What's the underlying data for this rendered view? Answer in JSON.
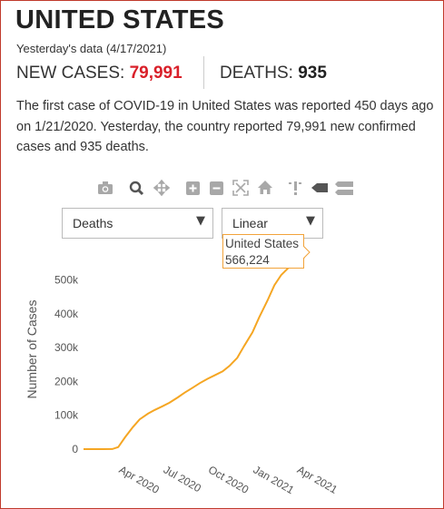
{
  "header": {
    "title": "UNITED STATES",
    "date_line": "Yesterday's data (4/17/2021)",
    "new_cases_label": "NEW CASES: ",
    "new_cases_value": "79,991",
    "deaths_label": "DEATHS: ",
    "deaths_value": "935"
  },
  "description": "The first case of COVID-19 in United States was reported 450 days ago on 1/21/2020. Yesterday, the country reported 79,991 new confirmed cases and 935 deaths.",
  "toolbar": {
    "icons": [
      "camera-icon",
      "zoom-icon",
      "pan-icon",
      "zoom-in-icon",
      "zoom-out-icon",
      "autoscale-icon",
      "home-icon",
      "spike-lines-icon",
      "hover-closest-icon",
      "hover-compare-icon"
    ]
  },
  "controls": {
    "metric_select": "Deaths",
    "scale_select": "Linear"
  },
  "tooltip": {
    "series": "United States",
    "value": "566,224"
  },
  "colors": {
    "accent_red": "#d9202a",
    "line": "#f5a623",
    "frame": "#c0392b"
  },
  "chart_data": {
    "type": "line",
    "title": "",
    "xlabel": "",
    "ylabel": "Number of Cases",
    "x_ticks": [
      "Apr 2020",
      "Jul 2020",
      "Oct 2020",
      "Jan 2021",
      "Apr 2021"
    ],
    "y_ticks": [
      "0",
      "100k",
      "200k",
      "300k",
      "400k",
      "500k"
    ],
    "xlim": [
      "2020-01-21",
      "2021-04-17"
    ],
    "ylim": [
      0,
      566224
    ],
    "grid": false,
    "series": [
      {
        "name": "United States",
        "x": [
          "2020-01-21",
          "2020-03-01",
          "2020-03-20",
          "2020-04-01",
          "2020-04-15",
          "2020-05-01",
          "2020-05-15",
          "2020-06-01",
          "2020-06-15",
          "2020-07-01",
          "2020-07-15",
          "2020-08-01",
          "2020-08-15",
          "2020-09-01",
          "2020-09-15",
          "2020-10-01",
          "2020-10-15",
          "2020-11-01",
          "2020-11-15",
          "2020-12-01",
          "2020-12-15",
          "2021-01-01",
          "2021-01-15",
          "2021-02-01",
          "2021-02-15",
          "2021-03-01",
          "2021-03-15",
          "2021-04-01",
          "2021-04-17"
        ],
        "values": [
          0,
          1,
          300,
          6000,
          35000,
          65000,
          88000,
          105000,
          116000,
          127000,
          137000,
          153000,
          167000,
          182000,
          195000,
          208000,
          218000,
          230000,
          246000,
          270000,
          305000,
          345000,
          390000,
          440000,
          485000,
          515000,
          535000,
          553000,
          566224
        ]
      }
    ]
  }
}
